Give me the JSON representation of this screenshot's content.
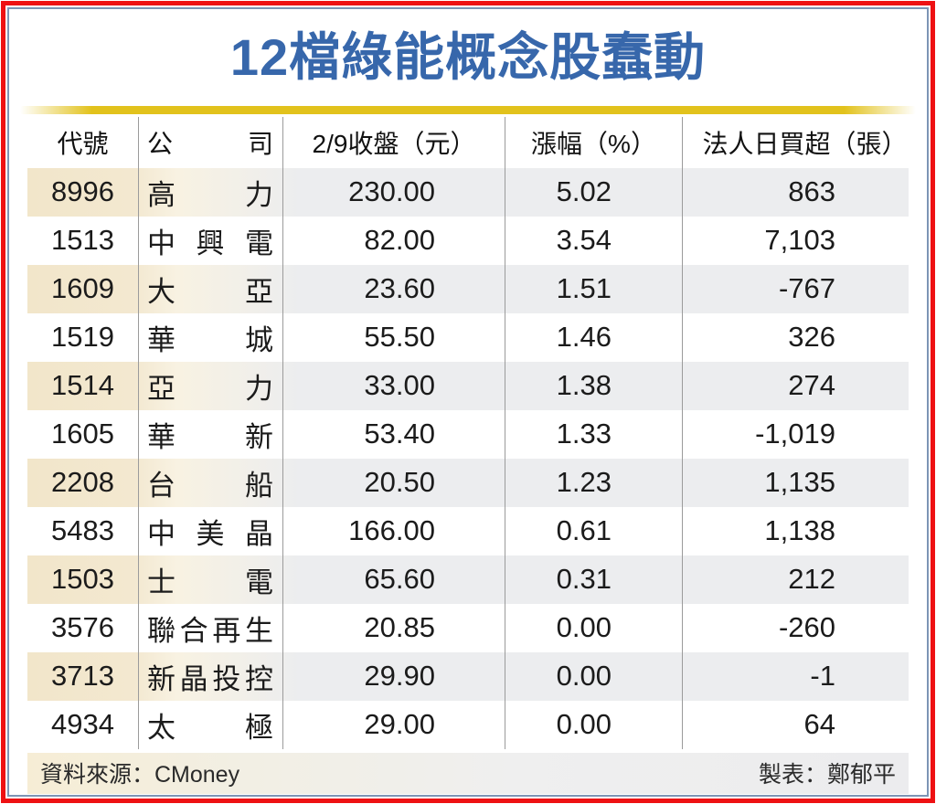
{
  "title": "12檔綠能概念股蠢動",
  "table": {
    "headers": [
      "代號",
      "公司",
      "2/9收盤（元）",
      "漲幅（%）",
      "法人日買超（張）"
    ],
    "rows": [
      {
        "code": "8996",
        "company": "高力",
        "close": "230.00",
        "change": "5.02",
        "net_buy": "863"
      },
      {
        "code": "1513",
        "company": "中興電",
        "close": "82.00",
        "change": "3.54",
        "net_buy": "7,103"
      },
      {
        "code": "1609",
        "company": "大亞",
        "close": "23.60",
        "change": "1.51",
        "net_buy": "-767"
      },
      {
        "code": "1519",
        "company": "華城",
        "close": "55.50",
        "change": "1.46",
        "net_buy": "326"
      },
      {
        "code": "1514",
        "company": "亞力",
        "close": "33.00",
        "change": "1.38",
        "net_buy": "274"
      },
      {
        "code": "1605",
        "company": "華新",
        "close": "53.40",
        "change": "1.33",
        "net_buy": "-1,019"
      },
      {
        "code": "2208",
        "company": "台船",
        "close": "20.50",
        "change": "1.23",
        "net_buy": "1,135"
      },
      {
        "code": "5483",
        "company": "中美晶",
        "close": "166.00",
        "change": "0.61",
        "net_buy": "1,138"
      },
      {
        "code": "1503",
        "company": "士電",
        "close": "65.60",
        "change": "0.31",
        "net_buy": "212"
      },
      {
        "code": "3576",
        "company": "聯合再生",
        "close": "20.85",
        "change": "0.00",
        "net_buy": "-260"
      },
      {
        "code": "3713",
        "company": "新晶投控",
        "close": "29.90",
        "change": "0.00",
        "net_buy": "-1"
      },
      {
        "code": "4934",
        "company": "太極",
        "close": "29.00",
        "change": "0.00",
        "net_buy": "64"
      }
    ]
  },
  "footer": {
    "source": "資料來源：CMoney",
    "credit": "製表：鄭郁平"
  },
  "colors": {
    "title_blue": "#3767ab",
    "outer_border_red": "#ee1113",
    "inner_border_blue": "#7d95b5",
    "gold_divider": "#e2c21c",
    "stripe_beige": "#f2e6ca",
    "stripe_gray": "#ecedef",
    "separator_gray": "#9b9b9b"
  },
  "chart_data": {
    "type": "table",
    "title": "12檔綠能概念股蠢動",
    "columns": [
      "代號",
      "公司",
      "2/9收盤（元）",
      "漲幅（%）",
      "法人日買超（張）"
    ],
    "rows": [
      [
        "8996",
        "高力",
        230.0,
        5.02,
        863
      ],
      [
        "1513",
        "中興電",
        82.0,
        3.54,
        7103
      ],
      [
        "1609",
        "大亞",
        23.6,
        1.51,
        -767
      ],
      [
        "1519",
        "華城",
        55.5,
        1.46,
        326
      ],
      [
        "1514",
        "亞力",
        33.0,
        1.38,
        274
      ],
      [
        "1605",
        "華新",
        53.4,
        1.33,
        -1019
      ],
      [
        "2208",
        "台船",
        20.5,
        1.23,
        1135
      ],
      [
        "5483",
        "中美晶",
        166.0,
        0.61,
        1138
      ],
      [
        "1503",
        "士電",
        65.6,
        0.31,
        212
      ],
      [
        "3576",
        "聯合再生",
        20.85,
        0.0,
        -260
      ],
      [
        "3713",
        "新晶投控",
        29.9,
        0.0,
        -1
      ],
      [
        "4934",
        "太極",
        29.0,
        0.0,
        64
      ]
    ],
    "source": "CMoney",
    "author": "鄭郁平"
  }
}
